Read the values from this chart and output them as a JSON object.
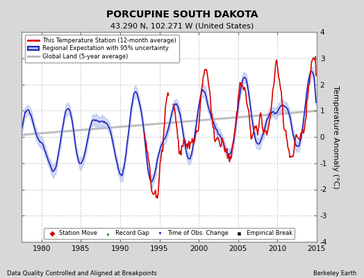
{
  "title": "PORCUPINE SOUTH DAKOTA",
  "subtitle": "43.290 N, 102.271 W (United States)",
  "ylabel": "Temperature Anomaly (°C)",
  "xlabel_left": "Data Quality Controlled and Aligned at Breakpoints",
  "xlabel_right": "Berkeley Earth",
  "ylim": [
    -4,
    4
  ],
  "xlim": [
    1977.5,
    2015
  ],
  "xticks": [
    1980,
    1985,
    1990,
    1995,
    2000,
    2005,
    2010,
    2015
  ],
  "yticks": [
    -4,
    -3,
    -2,
    -1,
    0,
    1,
    2,
    3,
    4
  ],
  "fig_bg_color": "#d8d8d8",
  "plot_bg_color": "#ffffff",
  "grid_color": "#cccccc",
  "red_color": "#dd0000",
  "blue_color": "#2222bb",
  "blue_fill_color": "#aabbee",
  "gray_color": "#bbbbbb",
  "legend1_labels": [
    "This Temperature Station (12-month average)",
    "Regional Expectation with 95% uncertainty",
    "Global Land (5-year average)"
  ],
  "legend2_labels": [
    "Station Move",
    "Record Gap",
    "Time of Obs. Change",
    "Empirical Break"
  ],
  "legend2_markers": [
    "D",
    "^",
    "v",
    "s"
  ],
  "legend2_colors": [
    "#cc0000",
    "#007700",
    "#0000cc",
    "#111111"
  ],
  "seed": 99
}
